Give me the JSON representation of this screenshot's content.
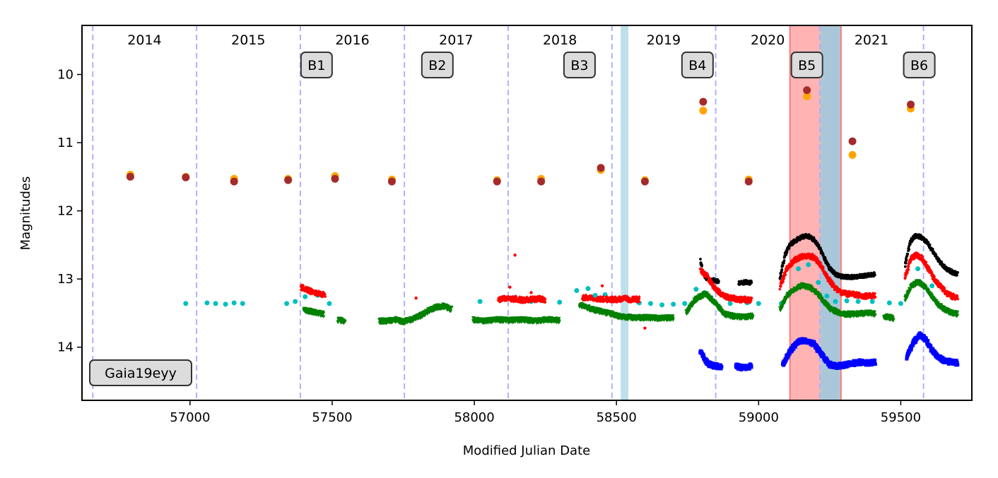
{
  "chart_data": {
    "type": "scatter",
    "title": "",
    "xlabel": "Modified Julian Date",
    "ylabel": "Magnitudes",
    "xlim": [
      56620,
      59750
    ],
    "ylim": [
      14.78,
      9.28
    ],
    "y_inverted": true,
    "grid": false,
    "xticks": [
      57000,
      57500,
      58000,
      58500,
      59000,
      59500
    ],
    "yticks": [
      10,
      11,
      12,
      13,
      14
    ],
    "xtick_labels": [
      "57000",
      "57500",
      "58000",
      "58500",
      "59000",
      "59500"
    ],
    "ytick_labels": [
      "10",
      "11",
      "12",
      "13",
      "14"
    ],
    "year_boundaries": [
      56658,
      57023,
      57388,
      57754,
      58119,
      58484,
      58849,
      59215,
      59580
    ],
    "year_labels": [
      {
        "text": "2014",
        "x": 56840
      },
      {
        "text": "2015",
        "x": 57205
      },
      {
        "text": "2016",
        "x": 57571
      },
      {
        "text": "2017",
        "x": 57936
      },
      {
        "text": "2018",
        "x": 58301
      },
      {
        "text": "2019",
        "x": 58666
      },
      {
        "text": "2020",
        "x": 59032
      },
      {
        "text": "2021",
        "x": 59397
      }
    ],
    "annotations": [
      {
        "text": "B1",
        "x": 57445,
        "y": 9.85
      },
      {
        "text": "B2",
        "x": 57870,
        "y": 9.85
      },
      {
        "text": "B3",
        "x": 58370,
        "y": 9.85
      },
      {
        "text": "B4",
        "x": 58785,
        "y": 9.85
      },
      {
        "text": "B5",
        "x": 59170,
        "y": 9.85
      },
      {
        "text": "B6",
        "x": 59565,
        "y": 9.85
      }
    ],
    "object_label": "Gaia19eyy",
    "shaded_regions": [
      {
        "name": "blue-band-1",
        "x0": 58515,
        "x1": 58542,
        "color": "#add8e6"
      },
      {
        "name": "red-band",
        "x0": 59110,
        "x1": 59290,
        "color": "#ff9999"
      },
      {
        "name": "blue-band-2",
        "x0": 59218,
        "x1": 59287,
        "color": "#add8e6"
      }
    ],
    "series": [
      {
        "name": "orange",
        "color": "#ffa500",
        "x": [
          56790,
          56985,
          57155,
          57345,
          57510,
          57710,
          58080,
          58235,
          58445,
          58600,
          58805,
          58965,
          59170,
          59330,
          59535
        ],
        "y": [
          11.47,
          11.5,
          11.53,
          11.53,
          11.49,
          11.54,
          11.55,
          11.53,
          11.4,
          11.55,
          10.53,
          11.54,
          10.32,
          11.18,
          10.5
        ]
      },
      {
        "name": "darkred",
        "color": "#a52a2a",
        "x": [
          56790,
          56985,
          57155,
          57345,
          57510,
          57710,
          58080,
          58235,
          58445,
          58600,
          58805,
          58965,
          59170,
          59330,
          59535
        ],
        "y": [
          11.5,
          11.51,
          11.57,
          11.55,
          11.53,
          11.57,
          11.57,
          11.57,
          11.37,
          11.57,
          10.4,
          11.57,
          10.23,
          10.98,
          10.44
        ]
      },
      {
        "name": "cyan",
        "color": "#00bfbf",
        "x": [
          56985,
          57060,
          57090,
          57125,
          57155,
          57185,
          57340,
          57370,
          57405,
          57450,
          57490,
          58020,
          58110,
          58200,
          58240,
          58300,
          58360,
          58400,
          58460,
          58520,
          58580,
          58620,
          58660,
          58700,
          58740,
          58780,
          58810,
          58850,
          58900,
          58960,
          59000,
          59080,
          59140,
          59175,
          59210,
          59240,
          59270,
          59310,
          59350,
          59400,
          59460,
          59500,
          59560,
          59610
        ],
        "y": [
          13.36,
          13.35,
          13.36,
          13.37,
          13.35,
          13.36,
          13.36,
          13.33,
          13.26,
          13.24,
          13.36,
          13.33,
          13.3,
          13.33,
          13.32,
          13.34,
          13.17,
          13.14,
          13.23,
          13.3,
          13.35,
          13.36,
          13.38,
          13.37,
          13.36,
          13.15,
          13.2,
          13.36,
          13.36,
          13.35,
          13.36,
          13.36,
          12.85,
          12.79,
          13.05,
          13.25,
          13.33,
          13.32,
          13.33,
          13.33,
          13.35,
          13.36,
          12.85,
          13.1
        ]
      },
      {
        "name": "black",
        "color": "#000000",
        "segments": [
          {
            "x0": 58795,
            "x1": 58860,
            "y": [
              12.72,
              12.9,
              12.98,
              13.0,
              13.01,
              13.02,
              13.03,
              13.04
            ]
          },
          {
            "x0": 58930,
            "x1": 58975,
            "y": [
              13.05,
              13.06,
              13.05,
              13.04,
              13.06,
              13.05
            ]
          },
          {
            "x0": 59075,
            "x1": 59410,
            "y": [
              12.98,
              12.65,
              12.5,
              12.44,
              12.4,
              12.37,
              12.38,
              12.44,
              12.56,
              12.72,
              12.85,
              12.93,
              12.96,
              12.97,
              12.97,
              12.97,
              12.96,
              12.95,
              12.94,
              12.93
            ]
          },
          {
            "x0": 59515,
            "x1": 59700,
            "y": [
              12.8,
              12.45,
              12.37,
              12.38,
              12.45,
              12.56,
              12.68,
              12.79,
              12.86,
              12.9,
              12.93
            ]
          }
        ]
      },
      {
        "name": "red",
        "color": "#ff0000",
        "segments": [
          {
            "x0": 57390,
            "x1": 57475,
            "y": [
              13.12,
              13.15,
              13.18,
              13.2,
              13.22,
              13.24
            ]
          },
          {
            "x0": 58085,
            "x1": 58250,
            "y": [
              13.3,
              13.28,
              13.3,
              13.29,
              13.31,
              13.3,
              13.3,
              13.29,
              13.3
            ]
          },
          {
            "x0": 58380,
            "x1": 58580,
            "y": [
              13.27,
              13.28,
              13.29,
              13.3,
              13.3,
              13.29,
              13.3,
              13.3
            ]
          },
          {
            "x0": 58795,
            "x1": 58975,
            "y": [
              12.87,
              12.95,
              13.1,
              13.2,
              13.26,
              13.28,
              13.3,
              13.3,
              13.31
            ]
          },
          {
            "x0": 59075,
            "x1": 59410,
            "y": [
              13.12,
              12.85,
              12.73,
              12.68,
              12.66,
              12.68,
              12.8,
              12.98,
              13.12,
              13.2,
              13.22,
              13.23,
              13.25,
              13.25,
              13.24
            ]
          },
          {
            "x0": 59515,
            "x1": 59700,
            "y": [
              12.98,
              12.7,
              12.65,
              12.7,
              12.85,
              13.0,
              13.1,
              13.2,
              13.25,
              13.28
            ]
          }
        ]
      },
      {
        "name": "green",
        "color": "#008000",
        "segments": [
          {
            "x0": 57400,
            "x1": 57470,
            "y": [
              13.45,
              13.48,
              13.5,
              13.52
            ]
          },
          {
            "x0": 57520,
            "x1": 57545,
            "y": [
              13.6,
              13.63
            ]
          },
          {
            "x0": 57665,
            "x1": 57920,
            "y": [
              13.62,
              13.62,
              13.6,
              13.63,
              13.6,
              13.55,
              13.48,
              13.42,
              13.4,
              13.45
            ]
          },
          {
            "x0": 57995,
            "x1": 58300,
            "y": [
              13.6,
              13.62,
              13.6,
              13.61,
              13.6,
              13.62,
              13.6,
              13.61
            ]
          },
          {
            "x0": 58370,
            "x1": 58700,
            "y": [
              13.38,
              13.45,
              13.5,
              13.55,
              13.57,
              13.57,
              13.58,
              13.57
            ]
          },
          {
            "x0": 58745,
            "x1": 58980,
            "y": [
              13.5,
              13.3,
              13.22,
              13.35,
              13.52,
              13.55,
              13.56,
              13.55
            ]
          },
          {
            "x0": 59075,
            "x1": 59410,
            "y": [
              13.45,
              13.25,
              13.15,
              13.1,
              13.12,
              13.2,
              13.35,
              13.45,
              13.5,
              13.52,
              13.52,
              13.51,
              13.5,
              13.52
            ]
          },
          {
            "x0": 59440,
            "x1": 59475,
            "y": [
              13.55,
              13.58
            ]
          },
          {
            "x0": 59515,
            "x1": 59700,
            "y": [
              13.3,
              13.1,
              13.05,
              13.12,
              13.25,
              13.38,
              13.45,
              13.5,
              13.52
            ]
          }
        ]
      },
      {
        "name": "blue",
        "color": "#0000ff",
        "segments": [
          {
            "x0": 58795,
            "x1": 58870,
            "y": [
              14.05,
              14.18,
              14.25,
              14.27,
              14.28,
              14.3
            ]
          },
          {
            "x0": 58920,
            "x1": 58975,
            "y": [
              14.28,
              14.3,
              14.29,
              14.28
            ]
          },
          {
            "x0": 59085,
            "x1": 59410,
            "y": [
              14.25,
              14.05,
              13.92,
              13.9,
              13.95,
              14.1,
              14.25,
              14.28,
              14.26,
              14.24,
              14.22,
              14.23,
              14.22
            ]
          },
          {
            "x0": 59520,
            "x1": 59700,
            "y": [
              14.15,
              13.95,
              13.82,
              13.88,
              14.05,
              14.15,
              14.2,
              14.22,
              14.23
            ]
          }
        ]
      }
    ],
    "outliers": [
      {
        "series": "red",
        "x": 57795,
        "y": 13.28
      },
      {
        "series": "red",
        "x": 58143,
        "y": 12.65
      },
      {
        "series": "red",
        "x": 58125,
        "y": 13.12
      },
      {
        "series": "red",
        "x": 58200,
        "y": 13.2
      },
      {
        "series": "red",
        "x": 58450,
        "y": 13.1
      },
      {
        "series": "red",
        "x": 58600,
        "y": 13.72
      },
      {
        "series": "cyan",
        "x": 58425,
        "y": 13.24
      }
    ]
  }
}
